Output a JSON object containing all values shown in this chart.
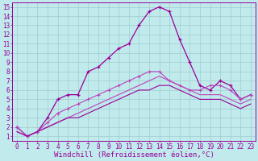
{
  "xlabel": "Windchill (Refroidissement éolien,°C)",
  "ylabel": "",
  "xlim": [
    -0.5,
    23.5
  ],
  "ylim": [
    0.5,
    15.5
  ],
  "xticks": [
    0,
    1,
    2,
    3,
    4,
    5,
    6,
    7,
    8,
    9,
    10,
    11,
    12,
    13,
    14,
    15,
    16,
    17,
    18,
    19,
    20,
    21,
    22,
    23
  ],
  "yticks": [
    1,
    2,
    3,
    4,
    5,
    6,
    7,
    8,
    9,
    10,
    11,
    12,
    13,
    14,
    15
  ],
  "background_color": "#c0eaec",
  "grid_color": "#a0ccce",
  "line_color": "#990099",
  "line_color2": "#bb44bb",
  "series1": [
    2,
    1,
    1.5,
    3,
    5,
    5.5,
    5.5,
    8,
    8.5,
    9.5,
    10.5,
    11,
    13,
    14.5,
    15,
    14.5,
    11.5,
    9,
    6.5,
    6,
    7,
    6.5,
    5,
    5.5
  ],
  "series2": [
    2,
    1,
    1.5,
    2.5,
    3.5,
    4,
    4.5,
    5,
    5.5,
    6,
    6.5,
    7,
    7.5,
    8,
    8,
    7,
    6.5,
    6,
    6,
    6.5,
    6.5,
    6,
    5,
    5.5
  ],
  "series3": [
    1.5,
    1,
    1.5,
    2,
    2.5,
    3,
    3.5,
    4,
    4.5,
    5,
    5.5,
    6,
    6.5,
    7,
    7.5,
    7,
    6.5,
    6,
    5.5,
    5.5,
    5.5,
    5,
    4.5,
    5
  ],
  "series4": [
    1.5,
    1,
    1.5,
    2,
    2.5,
    3,
    3,
    3.5,
    4,
    4.5,
    5,
    5.5,
    6,
    6,
    6.5,
    6.5,
    6,
    5.5,
    5,
    5,
    5,
    4.5,
    4,
    4.5
  ],
  "tick_fontsize": 5.5,
  "xlabel_fontsize": 6.5
}
